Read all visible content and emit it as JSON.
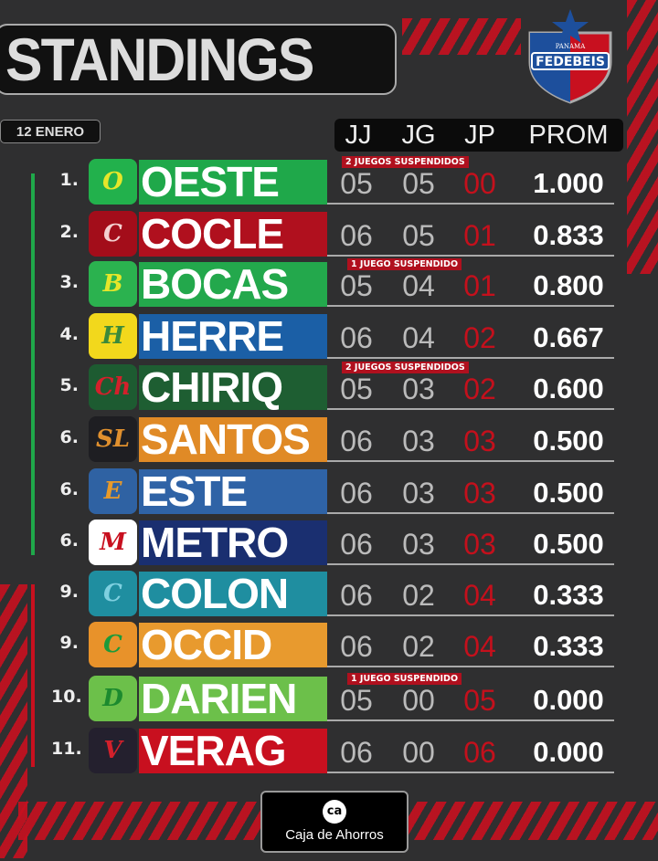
{
  "header": {
    "title": "STANDINGS",
    "date": "12 ENERO"
  },
  "logo": {
    "country": "PANAMA",
    "name": "FEDEBEIS"
  },
  "columns": [
    "JJ",
    "JG",
    "JP",
    "PROM"
  ],
  "colors": {
    "accent_red": "#c8101f",
    "loss_red": "#c4101c",
    "background": "#2f2f30"
  },
  "rows": [
    {
      "rank": "1.",
      "team": "OESTE",
      "logo_letter": "O",
      "color": "#1fa84a",
      "logo_bg": "#22b14c",
      "logo_fg": "#e6e62a",
      "jj": "05",
      "jg": "05",
      "jp": "00",
      "prom": "1.000",
      "note": "2 JUEGOS SUSPENDIDOS"
    },
    {
      "rank": "2.",
      "team": "COCLE",
      "logo_letter": "C",
      "color": "#b0101e",
      "logo_bg": "#a30d1a",
      "logo_fg": "#f3d0d0",
      "jj": "06",
      "jg": "05",
      "jp": "01",
      "prom": "0.833",
      "note": ""
    },
    {
      "rank": "3.",
      "team": "BOCAS",
      "logo_letter": "B",
      "color": "#23a84c",
      "logo_bg": "#2bb24f",
      "logo_fg": "#e6e62a",
      "jj": "05",
      "jg": "04",
      "jp": "01",
      "prom": "0.800",
      "note": "1 JUEGO SUSPENDIDO"
    },
    {
      "rank": "4.",
      "team": "HERRE",
      "logo_letter": "H",
      "color": "#1b5fa6",
      "logo_bg": "#f2d81c",
      "logo_fg": "#3a8a3a",
      "jj": "06",
      "jg": "04",
      "jp": "02",
      "prom": "0.667",
      "note": ""
    },
    {
      "rank": "5.",
      "team": "CHIRIQ",
      "logo_letter": "Ch",
      "color": "#1e5e32",
      "logo_bg": "#1d5b31",
      "logo_fg": "#d3202b",
      "jj": "05",
      "jg": "03",
      "jp": "02",
      "prom": "0.600",
      "note": "2 JUEGOS SUSPENDIDOS"
    },
    {
      "rank": "6.",
      "team": "SANTOS",
      "logo_letter": "SL",
      "color": "#e08a26",
      "logo_bg": "#1e1e22",
      "logo_fg": "#e0902e",
      "jj": "06",
      "jg": "03",
      "jp": "03",
      "prom": "0.500",
      "note": ""
    },
    {
      "rank": "6.",
      "team": "ESTE",
      "logo_letter": "E",
      "color": "#2f63a6",
      "logo_bg": "#2f62a3",
      "logo_fg": "#e89a2a",
      "jj": "06",
      "jg": "03",
      "jp": "03",
      "prom": "0.500",
      "note": ""
    },
    {
      "rank": "6.",
      "team": "METRO",
      "logo_letter": "M",
      "color": "#1a2f70",
      "logo_bg": "#ffffff",
      "logo_fg": "#c8101f",
      "jj": "06",
      "jg": "03",
      "jp": "03",
      "prom": "0.500",
      "note": ""
    },
    {
      "rank": "9.",
      "team": "COLON",
      "logo_letter": "C",
      "color": "#1f8ea0",
      "logo_bg": "#1f8ea0",
      "logo_fg": "#7fd0e0",
      "jj": "06",
      "jg": "02",
      "jp": "04",
      "prom": "0.333",
      "note": ""
    },
    {
      "rank": "9.",
      "team": "OCCID",
      "logo_letter": "C",
      "color": "#e89a2e",
      "logo_bg": "#e8922a",
      "logo_fg": "#1c9a3a",
      "jj": "06",
      "jg": "02",
      "jp": "04",
      "prom": "0.333",
      "note": ""
    },
    {
      "rank": "10.",
      "team": "DARIEN",
      "logo_letter": "D",
      "color": "#6cc04a",
      "logo_bg": "#6cc04a",
      "logo_fg": "#1c8a2e",
      "jj": "05",
      "jg": "00",
      "jp": "05",
      "prom": "0.000",
      "note": "1 JUEGO SUSPENDIDO"
    },
    {
      "rank": "11.",
      "team": "VERAG",
      "logo_letter": "V",
      "color": "#c8101f",
      "logo_bg": "#24202e",
      "logo_fg": "#d3202b",
      "jj": "06",
      "jg": "00",
      "jp": "06",
      "prom": "0.000",
      "note": ""
    }
  ],
  "sponsor": {
    "mark": "ca",
    "name": "Caja de Ahorros"
  }
}
